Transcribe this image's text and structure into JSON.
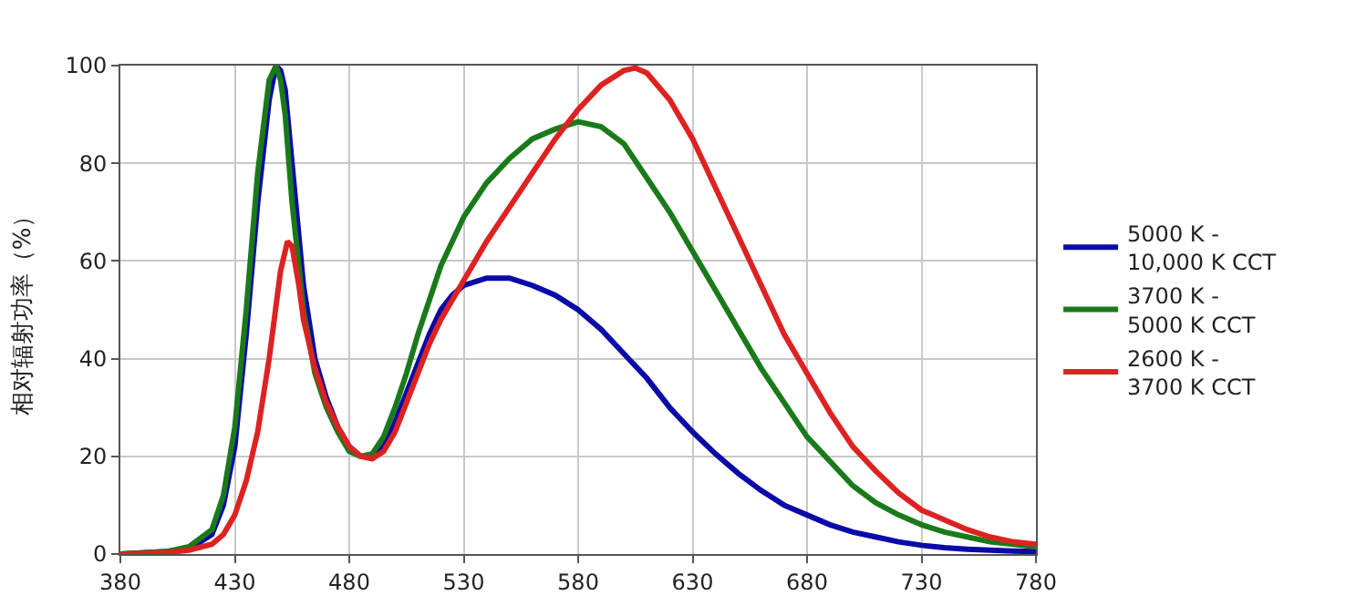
{
  "chart_data": {
    "type": "line",
    "ylabel": "相对辐射功率（%）",
    "xlim": [
      380,
      780
    ],
    "xticks": [
      380,
      430,
      480,
      530,
      580,
      630,
      680,
      730,
      780
    ],
    "ylim": [
      0,
      100
    ],
    "yticks": [
      0,
      20,
      40,
      60,
      80,
      100
    ],
    "grid": true,
    "legend": "right",
    "marker": "none",
    "line_style": "solid",
    "series": [
      {
        "name": "5000 K -\n10,000 K CCT",
        "color": "#0a0aa8",
        "x": [
          380,
          400,
          410,
          420,
          425,
          430,
          435,
          440,
          445,
          448,
          450,
          452,
          455,
          460,
          465,
          470,
          475,
          480,
          485,
          490,
          495,
          500,
          505,
          510,
          515,
          520,
          525,
          530,
          540,
          550,
          560,
          570,
          580,
          590,
          600,
          610,
          620,
          630,
          640,
          650,
          660,
          670,
          680,
          690,
          700,
          710,
          720,
          730,
          740,
          750,
          760,
          770,
          780
        ],
        "values": [
          0,
          0.5,
          1,
          4,
          10,
          22,
          45,
          72,
          93,
          100,
          99,
          95,
          80,
          55,
          40,
          32,
          26,
          22,
          20,
          20,
          22,
          27,
          33,
          39,
          45,
          50,
          53,
          55,
          56.5,
          56.5,
          55,
          53,
          50,
          46,
          41,
          36,
          30,
          25,
          20.5,
          16.5,
          13,
          10,
          8,
          6,
          4.5,
          3.5,
          2.5,
          1.8,
          1.3,
          1,
          0.8,
          0.6,
          0.5
        ]
      },
      {
        "name": "3700 K -\n5000 K CCT",
        "color": "#1a7a1a",
        "x": [
          380,
          400,
          410,
          420,
          425,
          430,
          435,
          440,
          445,
          448,
          450,
          452,
          455,
          460,
          465,
          470,
          475,
          480,
          485,
          490,
          495,
          500,
          505,
          510,
          515,
          520,
          525,
          530,
          540,
          550,
          560,
          570,
          580,
          590,
          600,
          610,
          620,
          630,
          640,
          650,
          660,
          670,
          680,
          690,
          700,
          710,
          720,
          730,
          740,
          750,
          760,
          770,
          780
        ],
        "values": [
          0,
          0.5,
          1.5,
          5,
          12,
          26,
          50,
          78,
          97,
          100,
          97,
          90,
          72,
          50,
          37,
          30,
          25,
          21,
          20,
          20.5,
          24,
          30,
          37,
          45,
          52,
          59,
          64,
          69,
          76,
          81,
          85,
          87,
          88.5,
          87.5,
          84,
          77,
          70,
          62,
          54,
          46,
          38,
          31,
          24,
          19,
          14,
          10.5,
          8,
          6,
          4.5,
          3.5,
          2.5,
          2,
          1.5
        ]
      },
      {
        "name": "2600 K -\n3700 K CCT",
        "color": "#dd2222",
        "x": [
          380,
          400,
          410,
          420,
          425,
          430,
          435,
          440,
          445,
          450,
          453,
          455,
          458,
          460,
          465,
          470,
          475,
          480,
          485,
          490,
          495,
          500,
          505,
          510,
          515,
          520,
          525,
          530,
          540,
          550,
          560,
          570,
          580,
          590,
          600,
          605,
          610,
          620,
          630,
          640,
          650,
          660,
          670,
          680,
          690,
          700,
          710,
          720,
          730,
          740,
          750,
          760,
          770,
          780
        ],
        "values": [
          0,
          0.3,
          0.8,
          2,
          4,
          8,
          15,
          25,
          40,
          58,
          64,
          63,
          55,
          48,
          38,
          31,
          26,
          22,
          20,
          19.5,
          21,
          25,
          31,
          37,
          43,
          48,
          52,
          56,
          64,
          71,
          78,
          85,
          91,
          96,
          99,
          99.5,
          98.5,
          93,
          85,
          75,
          65,
          55,
          45,
          37,
          29,
          22,
          17,
          12.5,
          9,
          7,
          5,
          3.5,
          2.5,
          2
        ]
      }
    ]
  }
}
